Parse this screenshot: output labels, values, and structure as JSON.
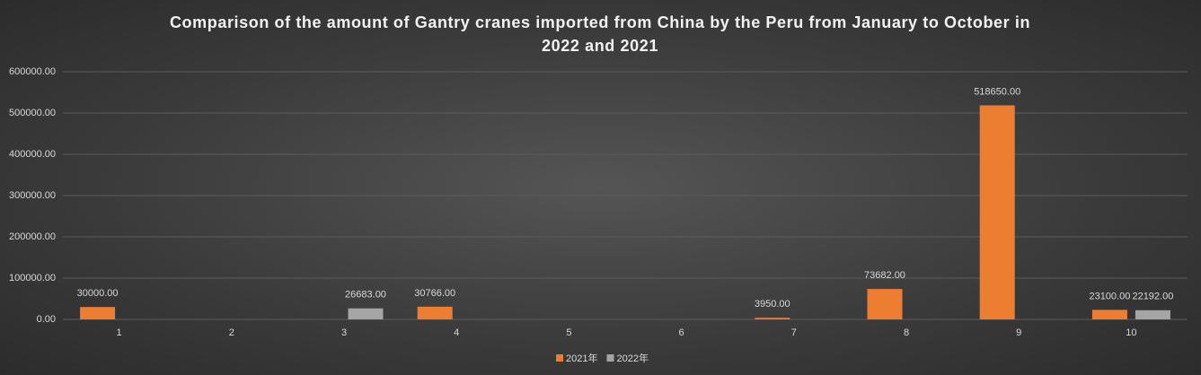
{
  "chart_data": {
    "type": "bar",
    "title": "Comparison of the amount of Gantry cranes imported from China by the Peru from January to October in 2022 and 2021",
    "categories": [
      "1",
      "2",
      "3",
      "4",
      "5",
      "6",
      "7",
      "8",
      "9",
      "10"
    ],
    "series": [
      {
        "name": "2021年",
        "color": "#ed7d31",
        "values": [
          30000,
          null,
          null,
          30766,
          null,
          null,
          3950,
          73682,
          518650,
          23100
        ],
        "value_labels": [
          "30000.00",
          null,
          null,
          "30766.00",
          null,
          null,
          "3950.00",
          "73682.00",
          "518650.00",
          "23100.00"
        ]
      },
      {
        "name": "2022年",
        "color": "#a5a5a5",
        "values": [
          null,
          null,
          26683,
          null,
          null,
          null,
          null,
          null,
          null,
          22192
        ],
        "value_labels": [
          null,
          null,
          "26683.00",
          null,
          null,
          null,
          null,
          null,
          null,
          "22192.00"
        ]
      }
    ],
    "ylim": [
      0,
      600000
    ],
    "yticks": [
      {
        "value": 0,
        "label": "0.00"
      },
      {
        "value": 100000,
        "label": "100000.00"
      },
      {
        "value": 200000,
        "label": "200000.00"
      },
      {
        "value": 300000,
        "label": "300000.00"
      },
      {
        "value": 400000,
        "label": "400000.00"
      },
      {
        "value": 500000,
        "label": "500000.00"
      },
      {
        "value": 600000,
        "label": "600000.00"
      }
    ],
    "grid": true,
    "legend": "bottom"
  }
}
